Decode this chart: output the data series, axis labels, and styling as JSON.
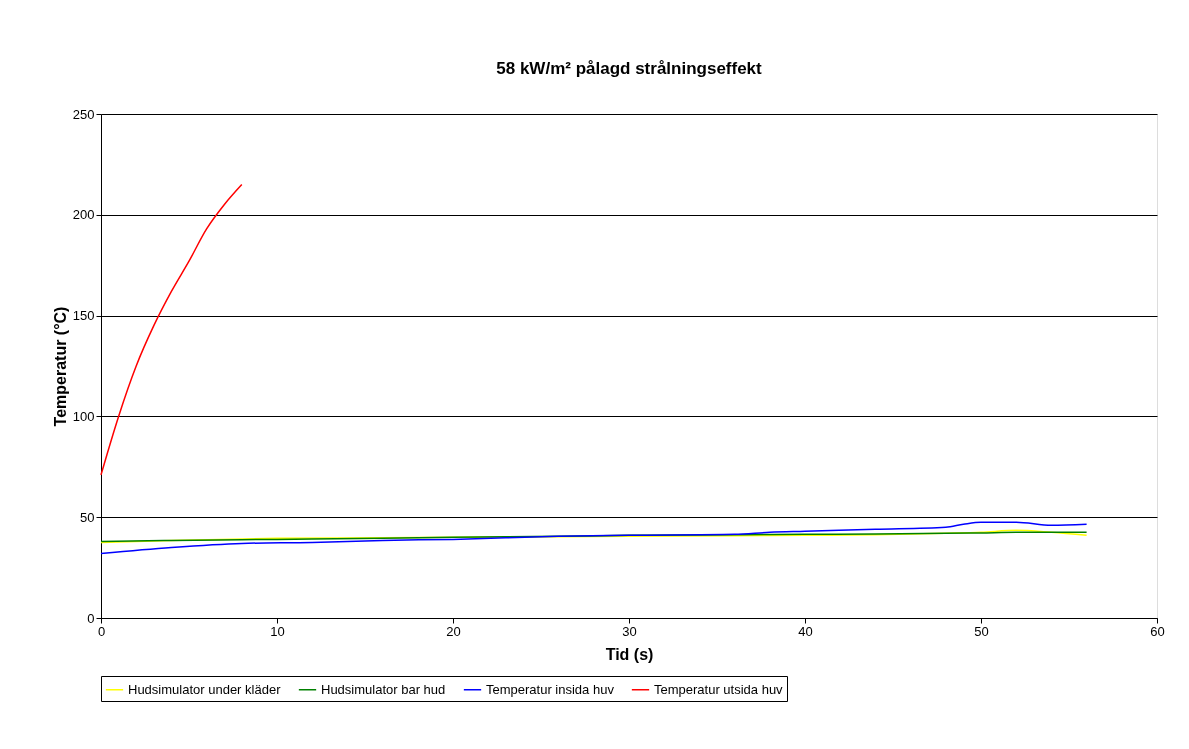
{
  "chart_data": {
    "type": "line",
    "title": "58 kW/m² pålagd strålningseffekt",
    "xlabel": "Tid (s)",
    "ylabel": "Temperatur (°C)",
    "xlim": [
      0,
      60
    ],
    "xticks": [
      0,
      10,
      20,
      30,
      40,
      50,
      60
    ],
    "ylim": [
      0,
      250
    ],
    "yticks": [
      0,
      50,
      100,
      150,
      200,
      250
    ],
    "grid": "y",
    "legend": "bottom",
    "marker": "none",
    "line_style": "solid",
    "series": [
      {
        "name": "Hudsimulator under kläder",
        "color": "#ffff00",
        "x": [
          0,
          4,
          10,
          16,
          20,
          26,
          30,
          36,
          40,
          44,
          48,
          50,
          52,
          54,
          56
        ],
        "values": [
          37.5,
          38.5,
          39.5,
          39.8,
          40,
          40.3,
          40.5,
          40.8,
          41,
          41.3,
          42,
          42.5,
          43.5,
          42.5,
          41
        ]
      },
      {
        "name": "Hudsimulator bar hud",
        "color": "#008000",
        "x": [
          0,
          4,
          10,
          16,
          20,
          26,
          30,
          36,
          40,
          44,
          48,
          50,
          52,
          54,
          56
        ],
        "values": [
          38,
          38.5,
          39,
          39.5,
          40,
          40.5,
          41,
          41.3,
          41.5,
          41.7,
          42,
          42.2,
          42.5,
          42.5,
          42.5
        ]
      },
      {
        "name": "Temperatur insida huv",
        "color": "#0000ff",
        "x": [
          0,
          4,
          8,
          12,
          16,
          20,
          26,
          30,
          36,
          38,
          40,
          44,
          48,
          49,
          50,
          52,
          54,
          56
        ],
        "values": [
          32,
          35,
          37,
          37.5,
          38.5,
          39,
          40.5,
          41,
          41.5,
          42.5,
          43,
          44,
          45,
          46.5,
          47.5,
          47.5,
          46,
          46.5
        ]
      },
      {
        "name": "Temperatur utsida huv",
        "color": "#ff0000",
        "x": [
          0,
          1,
          2,
          3,
          4,
          5,
          6,
          7,
          8
        ],
        "values": [
          71,
          100,
          125,
          145,
          162,
          177,
          193,
          205,
          215
        ]
      }
    ]
  }
}
